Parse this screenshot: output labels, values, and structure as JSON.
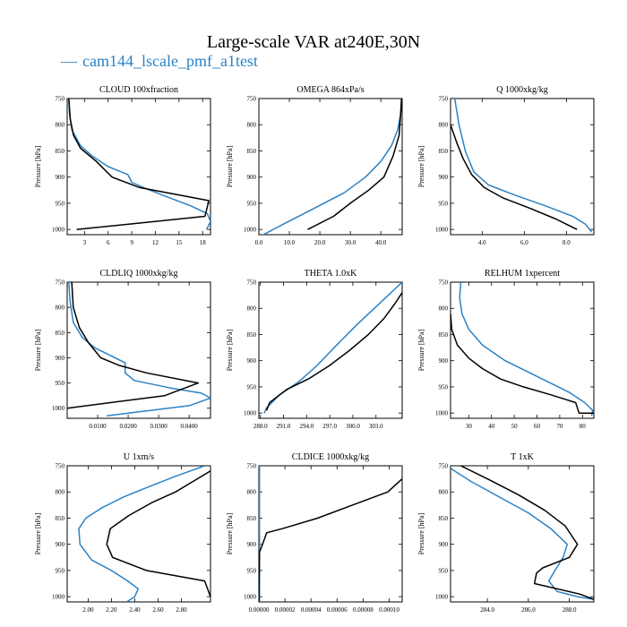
{
  "figure": {
    "title": "Large-scale VAR at240E,30N",
    "legend_label": "cam144_lscale_pmf_a1test"
  },
  "colors": {
    "case": "#2b82c5",
    "obs": "#000000"
  },
  "chart_data": [
    {
      "type": "line",
      "title": "CLOUD 100xfraction",
      "ylabel": "Pressure [hPa]",
      "xlim": [
        0.8,
        19.0
      ],
      "ylim": [
        1010,
        750
      ],
      "xticks": [
        3,
        6,
        9,
        12,
        15,
        18
      ],
      "xtick_labels": [
        "3",
        "6",
        "9",
        "12",
        "15",
        "18"
      ],
      "yticks": [
        750,
        800,
        850,
        900,
        950,
        1000
      ],
      "ytick_labels": [
        "750",
        "800",
        "850",
        "900",
        "950",
        "1000"
      ],
      "series": [
        {
          "color": "#2b82c5",
          "x": [
            1.0,
            1.1,
            1.4,
            2.5,
            4.0,
            6.0,
            8.5,
            9.0,
            10.5,
            13.0,
            16.5,
            18.6,
            19.0,
            18.5
          ],
          "y": [
            750,
            780,
            810,
            840,
            860,
            880,
            895,
            910,
            920,
            935,
            955,
            970,
            985,
            1000
          ]
        },
        {
          "color": "#000000",
          "x": [
            1.0,
            1.2,
            1.6,
            2.5,
            4.5,
            6.5,
            10.0,
            18.8,
            18.3,
            2.0
          ],
          "y": [
            750,
            790,
            820,
            845,
            870,
            900,
            920,
            945,
            975,
            1000
          ]
        }
      ]
    },
    {
      "type": "line",
      "title": "OMEGA 864xPa/s",
      "ylabel": "Pressure [hPa]",
      "xlim": [
        0.0,
        47.0
      ],
      "ylim": [
        1010,
        750
      ],
      "xticks": [
        0,
        10,
        20,
        30,
        40
      ],
      "xtick_labels": [
        "0.0",
        "10.0",
        "20.0",
        "30.0",
        "40.0"
      ],
      "yticks": [
        750,
        800,
        850,
        900,
        950,
        1000
      ],
      "ytick_labels": [
        "750",
        "800",
        "850",
        "900",
        "950",
        "1000"
      ],
      "series": [
        {
          "color": "#2b82c5",
          "x": [
            46.8,
            46.5,
            45.5,
            43.5,
            40.0,
            35.0,
            28.0,
            18.0,
            8.0,
            0.5
          ],
          "y": [
            750,
            780,
            810,
            840,
            870,
            900,
            930,
            960,
            990,
            1013
          ]
        },
        {
          "color": "#000000",
          "x": [
            46.8,
            46.5,
            46.0,
            44.0,
            41.0,
            36.0,
            30.0,
            24.5,
            16.0
          ],
          "y": [
            750,
            780,
            820,
            860,
            900,
            925,
            950,
            975,
            1000
          ]
        }
      ]
    },
    {
      "type": "line",
      "title": "Q 1000xkg/kg",
      "ylabel": "Pressure [hPa]",
      "xlim": [
        2.5,
        9.3
      ],
      "ylim": [
        1010,
        750
      ],
      "xticks": [
        4,
        6,
        8
      ],
      "xtick_labels": [
        "4.0",
        "6.0",
        "8.0"
      ],
      "yticks": [
        750,
        800,
        850,
        900,
        950,
        1000
      ],
      "ytick_labels": [
        "750",
        "800",
        "850",
        "900",
        "950",
        "1000"
      ],
      "series": [
        {
          "color": "#2b82c5",
          "x": [
            2.7,
            2.9,
            3.2,
            3.6,
            4.3,
            5.6,
            7.0,
            8.3,
            8.9,
            9.2
          ],
          "y": [
            750,
            800,
            850,
            890,
            915,
            935,
            955,
            975,
            990,
            1005
          ]
        },
        {
          "color": "#000000",
          "x": [
            2.5,
            2.8,
            3.1,
            3.5,
            4.1,
            5.0,
            6.3,
            7.5,
            8.5
          ],
          "y": [
            800,
            835,
            865,
            895,
            920,
            940,
            960,
            980,
            1000
          ]
        }
      ]
    },
    {
      "type": "line",
      "title": "CLDLIQ 1000xkg/kg",
      "ylabel": "Pressure [hPa]",
      "xlim": [
        0.0,
        0.047
      ],
      "ylim": [
        1020,
        750
      ],
      "xticks": [
        0.01,
        0.02,
        0.03,
        0.04
      ],
      "xtick_labels": [
        "0.0100",
        "0.0200",
        "0.0300",
        "0.0400"
      ],
      "yticks": [
        750,
        800,
        850,
        900,
        950,
        1000
      ],
      "ytick_labels": [
        "750",
        "800",
        "850",
        "900",
        "950",
        "1000"
      ],
      "series": [
        {
          "color": "#2b82c5",
          "x": [
            0.0005,
            0.001,
            0.002,
            0.005,
            0.009,
            0.014,
            0.019,
            0.019,
            0.022,
            0.034,
            0.044,
            0.047,
            0.04,
            0.013
          ],
          "y": [
            750,
            790,
            830,
            860,
            880,
            895,
            910,
            930,
            945,
            960,
            970,
            980,
            995,
            1015
          ]
        },
        {
          "color": "#000000",
          "x": [
            0.0015,
            0.002,
            0.004,
            0.007,
            0.011,
            0.017,
            0.026,
            0.043,
            0.032,
            0.0
          ],
          "y": [
            750,
            800,
            840,
            870,
            900,
            915,
            930,
            950,
            975,
            1000
          ]
        }
      ]
    },
    {
      "type": "line",
      "title": "THETA 1.0xK",
      "ylabel": "Pressure [hPa]",
      "xlim": [
        287.8,
        306.4
      ],
      "ylim": [
        1010,
        750
      ],
      "xticks": [
        288,
        291,
        294,
        297,
        300,
        303
      ],
      "xtick_labels": [
        "288.0",
        "291.0",
        "294.0",
        "297.0",
        "300.0",
        "303.0"
      ],
      "yticks": [
        750,
        800,
        850,
        900,
        950,
        1000
      ],
      "ytick_labels": [
        "750",
        "800",
        "850",
        "900",
        "950",
        "1000"
      ],
      "series": [
        {
          "color": "#2b82c5",
          "x": [
            306.4,
            303.5,
            300.6,
            297.9,
            295.3,
            293.0,
            290.5,
            288.8,
            288.5
          ],
          "y": [
            750,
            790,
            830,
            870,
            910,
            940,
            965,
            990,
            1000
          ]
        },
        {
          "color": "#000000",
          "x": [
            306.4,
            305.5,
            304.0,
            302.0,
            299.6,
            296.9,
            294.2,
            291.4,
            289.2,
            288.8
          ],
          "y": [
            770,
            790,
            820,
            850,
            880,
            910,
            935,
            955,
            980,
            995
          ]
        }
      ]
    },
    {
      "type": "line",
      "title": "RELHUM 1xpercent",
      "ylabel": "Pressure [hPa]",
      "xlim": [
        22.0,
        85.0
      ],
      "ylim": [
        1010,
        750
      ],
      "xticks": [
        30,
        40,
        50,
        60,
        70,
        80
      ],
      "xtick_labels": [
        "30",
        "40",
        "50",
        "60",
        "70",
        "80"
      ],
      "yticks": [
        750,
        800,
        850,
        900,
        950,
        1000
      ],
      "ytick_labels": [
        "750",
        "800",
        "850",
        "900",
        "950",
        "1000"
      ],
      "series": [
        {
          "color": "#2b82c5",
          "x": [
            26.5,
            26.0,
            27.0,
            30.0,
            36.0,
            46.0,
            60.0,
            74.0,
            81.0,
            84.5,
            84.0
          ],
          "y": [
            750,
            780,
            810,
            840,
            870,
            900,
            930,
            960,
            980,
            995,
            1005
          ]
        },
        {
          "color": "#000000",
          "x": [
            22.0,
            22.5,
            25.0,
            30.0,
            36.0,
            44.0,
            54.0,
            66.0,
            77.0,
            78.5,
            85.0
          ],
          "y": [
            810,
            840,
            870,
            895,
            915,
            935,
            950,
            965,
            980,
            1000,
            1000
          ]
        }
      ]
    },
    {
      "type": "line",
      "title": "U 1xm/s",
      "ylabel": "Pressure [hPa]",
      "xlim": [
        1.82,
        3.05
      ],
      "ylim": [
        1010,
        750
      ],
      "xticks": [
        2.0,
        2.2,
        2.4,
        2.6,
        2.8
      ],
      "xtick_labels": [
        "2.00",
        "2.20",
        "2.40",
        "2.60",
        "2.80"
      ],
      "yticks": [
        750,
        800,
        850,
        900,
        950,
        1000
      ],
      "ytick_labels": [
        "750",
        "800",
        "850",
        "900",
        "950",
        "1000"
      ],
      "series": [
        {
          "color": "#2b82c5",
          "x": [
            3.0,
            2.75,
            2.52,
            2.3,
            2.12,
            1.98,
            1.92,
            1.93,
            2.03,
            2.2,
            2.34,
            2.43,
            2.4,
            2.33
          ],
          "y": [
            750,
            770,
            790,
            810,
            830,
            850,
            870,
            900,
            930,
            950,
            970,
            985,
            1000,
            1010
          ]
        },
        {
          "color": "#000000",
          "x": [
            3.05,
            2.9,
            2.75,
            2.55,
            2.35,
            2.19,
            2.16,
            2.21,
            2.5,
            3.0,
            3.05
          ],
          "y": [
            760,
            780,
            800,
            820,
            845,
            870,
            900,
            925,
            950,
            970,
            1000
          ]
        }
      ]
    },
    {
      "type": "line",
      "title": "CLDICE 1000xkg/kg",
      "ylabel": "Pressure [hPa]",
      "xlim": [
        0.0,
        0.00011
      ],
      "ylim": [
        1010,
        750
      ],
      "xticks": [
        0.0,
        2e-05,
        4e-05,
        6e-05,
        8e-05,
        0.0001
      ],
      "xtick_labels": [
        "0.00000",
        "0.00002",
        "0.00004",
        "0.00006",
        "0.00008",
        "0.00010"
      ],
      "yticks": [
        750,
        800,
        850,
        900,
        950,
        1000
      ],
      "ytick_labels": [
        "750",
        "800",
        "850",
        "900",
        "950",
        "1000"
      ],
      "series": [
        {
          "color": "#2b82c5",
          "x": [
            5e-07,
            5e-07,
            5e-07,
            5e-07,
            5e-07
          ],
          "y": [
            750,
            800,
            900,
            950,
            1010
          ]
        },
        {
          "color": "#000000",
          "x": [
            0.00011,
            9.9e-05,
            7.2e-05,
            4.5e-05,
            1.8e-05,
            6e-06,
            2.8e-06,
            5e-07,
            0.0
          ],
          "y": [
            775,
            800,
            825,
            850,
            870,
            878,
            900,
            915,
            1010
          ]
        }
      ]
    },
    {
      "type": "line",
      "title": "T 1xK",
      "ylabel": "Pressure [hPa]",
      "xlim": [
        282.2,
        289.2
      ],
      "ylim": [
        1010,
        750
      ],
      "xticks": [
        284,
        286,
        288
      ],
      "xtick_labels": [
        "284.0",
        "286.0",
        "288.0"
      ],
      "yticks": [
        750,
        800,
        850,
        900,
        950,
        1000
      ],
      "ytick_labels": [
        "750",
        "800",
        "850",
        "900",
        "950",
        "1000"
      ],
      "series": [
        {
          "color": "#2b82c5",
          "x": [
            282.2,
            283.2,
            284.6,
            286.0,
            287.1,
            287.9,
            287.7,
            287.3,
            287.0,
            287.4,
            288.4,
            289.2
          ],
          "y": [
            755,
            780,
            810,
            840,
            870,
            900,
            925,
            950,
            970,
            990,
            1000,
            1005
          ]
        },
        {
          "color": "#000000",
          "x": [
            282.7,
            284.0,
            285.5,
            286.8,
            287.8,
            288.4,
            288.0,
            286.7,
            286.4,
            286.3,
            288.5,
            289.2
          ],
          "y": [
            750,
            775,
            805,
            835,
            865,
            900,
            925,
            945,
            955,
            975,
            995,
            1005
          ]
        }
      ]
    }
  ]
}
